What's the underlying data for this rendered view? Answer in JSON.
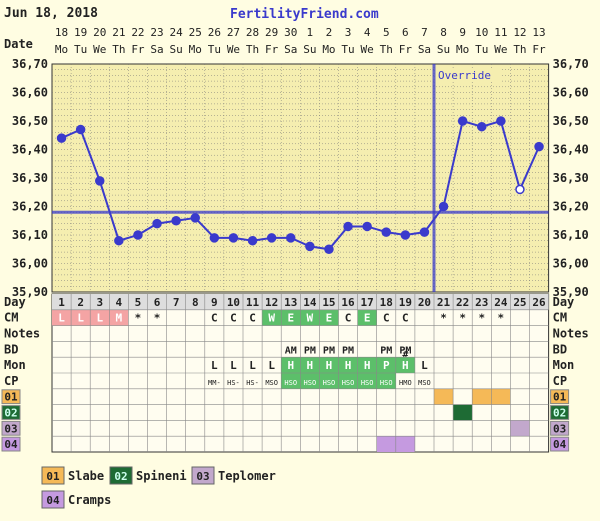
{
  "header": {
    "date": "Jun 18, 2018",
    "site": "FertilityFriend.com"
  },
  "labels": {
    "date_row": "Date",
    "day_row": "Day",
    "cm_row": "CM",
    "notes_row": "Notes",
    "bd_row": "BD",
    "mon_row": "Mon",
    "cp_row": "CP"
  },
  "override_label": "Override",
  "colors": {
    "background": "#fffde2",
    "plot_bg": "#f5eeb0",
    "line": "#3a3acc",
    "grid": "#555555",
    "menses": "#f4a4a4",
    "fertile_green": "#5cbf6a",
    "slabe": "#f5b957",
    "spineni": "#1e6b34",
    "teplomer": "#c2a8cc",
    "cramps": "#c59ae0"
  },
  "chart_data": {
    "type": "line",
    "title": "",
    "xlabel": "Day",
    "ylabel": "",
    "ylim": [
      35.9,
      36.7
    ],
    "y_ticks": [
      "35,90",
      "36,00",
      "36,10",
      "36,20",
      "36,30",
      "36,40",
      "36,50",
      "36,60",
      "36,70"
    ],
    "dates": [
      "18",
      "19",
      "20",
      "21",
      "22",
      "23",
      "24",
      "25",
      "26",
      "27",
      "28",
      "29",
      "30",
      "1",
      "2",
      "3",
      "4",
      "5",
      "6",
      "7",
      "8",
      "9",
      "10",
      "11",
      "12",
      "13"
    ],
    "weekdays": [
      "Mo",
      "Tu",
      "We",
      "Th",
      "Fr",
      "Sa",
      "Su",
      "Mo",
      "Tu",
      "We",
      "Th",
      "Fr",
      "Sa",
      "Su",
      "Mo",
      "Tu",
      "We",
      "Th",
      "Fr",
      "Sa",
      "Su",
      "Mo",
      "Tu",
      "We",
      "Th",
      "Fr"
    ],
    "cycle_days": [
      "1",
      "2",
      "3",
      "4",
      "5",
      "6",
      "7",
      "8",
      "9",
      "10",
      "11",
      "12",
      "13",
      "14",
      "15",
      "16",
      "17",
      "18",
      "19",
      "20",
      "21",
      "22",
      "23",
      "24",
      "25",
      "26"
    ],
    "series": [
      {
        "values": [
          36.44,
          36.47,
          36.29,
          36.08,
          36.1,
          36.14,
          36.15,
          36.16,
          36.09,
          36.09,
          36.08,
          36.09,
          36.09,
          36.06,
          36.05,
          36.13,
          36.13,
          36.11,
          36.1,
          36.11,
          36.2,
          36.5,
          36.48,
          36.5,
          36.26,
          36.41
        ],
        "open_points": [
          25
        ]
      }
    ],
    "coverline": 36.18,
    "override_day": 20,
    "cm": [
      "L",
      "L",
      "L",
      "M",
      "*",
      "*",
      "",
      "",
      "C",
      "C",
      "C",
      "W",
      "E",
      "W",
      "E",
      "C",
      "E",
      "C",
      "C",
      "",
      "*",
      "*",
      "*",
      "*",
      "",
      ""
    ],
    "cm_colors": [
      "menses",
      "menses",
      "menses",
      "menses",
      "",
      "",
      "",
      "",
      "",
      "",
      "",
      "fertile_green",
      "fertile_green",
      "fertile_green",
      "fertile_green",
      "",
      "fertile_green",
      "",
      "",
      "",
      "",
      "",
      "",
      "",
      "",
      ""
    ],
    "notes": [
      "",
      "",
      "",
      "",
      "",
      "",
      "",
      "",
      "",
      "",
      "",
      "",
      "",
      "",
      "",
      "",
      "",
      "",
      "",
      "",
      "",
      "",
      "",
      "",
      "",
      ""
    ],
    "bd": [
      "",
      "",
      "",
      "",
      "",
      "",
      "",
      "",
      "",
      "",
      "",
      "",
      "AM",
      "PM",
      "PM",
      "PM",
      "",
      "PM",
      "PM",
      "",
      "",
      "",
      "",
      "",
      "",
      ""
    ],
    "mon": [
      "",
      "",
      "",
      "",
      "",
      "",
      "",
      "",
      "L",
      "L",
      "L",
      "L",
      "H",
      "H",
      "H",
      "H",
      "H",
      "P",
      "H",
      "L",
      "",
      "",
      "",
      "",
      "",
      ""
    ],
    "mon_marks": [
      "",
      "",
      "",
      "",
      "",
      "",
      "",
      "",
      "",
      "",
      "",
      "",
      "",
      "",
      "",
      "",
      "",
      "",
      "#",
      "",
      "",
      "",
      "",
      "",
      "",
      ""
    ],
    "mon_colors": [
      "",
      "",
      "",
      "",
      "",
      "",
      "",
      "",
      "",
      "",
      "",
      "",
      "fertile_green",
      "fertile_green",
      "fertile_green",
      "fertile_green",
      "fertile_green",
      "fertile_green",
      "fertile_green",
      "",
      "",
      "",
      "",
      "",
      "",
      ""
    ],
    "cp": [
      "",
      "",
      "",
      "",
      "",
      "",
      "",
      "",
      "MM-",
      "HS-",
      "HS-",
      "MSO",
      "HSO",
      "HSO",
      "HSO",
      "HSO",
      "HSO",
      "HSO",
      "HMO",
      "MSO",
      "",
      "",
      "",
      "",
      "",
      ""
    ],
    "cp_colors": [
      "",
      "",
      "",
      "",
      "",
      "",
      "",
      "",
      "",
      "",
      "",
      "",
      "fertile_green",
      "fertile_green",
      "fertile_green",
      "fertile_green",
      "fertile_green",
      "fertile_green",
      "",
      "",
      "",
      "",
      "",
      "",
      "",
      ""
    ],
    "symptom_rows": [
      {
        "code": "01",
        "color_key": "slabe",
        "days": [
          21,
          23,
          24
        ]
      },
      {
        "code": "02",
        "color_key": "spineni",
        "days": [
          22
        ]
      },
      {
        "code": "03",
        "color_key": "teplomer",
        "days": [
          25
        ]
      },
      {
        "code": "04",
        "color_key": "cramps",
        "days": [
          18,
          19
        ]
      }
    ],
    "legend": [
      {
        "code": "01",
        "name": "Slabe",
        "color_key": "slabe"
      },
      {
        "code": "02",
        "name": "Spineni",
        "color_key": "spineni"
      },
      {
        "code": "03",
        "name": "Teplomer",
        "color_key": "teplomer"
      },
      {
        "code": "04",
        "name": "Cramps",
        "color_key": "cramps"
      }
    ]
  }
}
